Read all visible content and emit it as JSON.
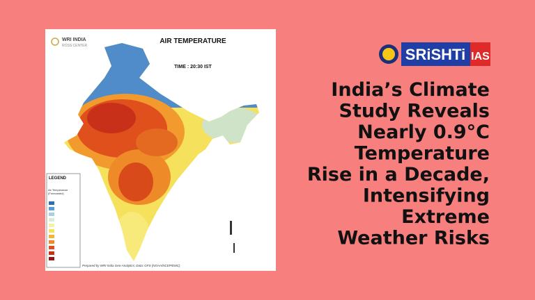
{
  "map": {
    "title": "AIR TEMPERATURE",
    "time": "TIME : 20:30 IST",
    "org": "WRI INDIA",
    "org_sub": "ROSS CENTER",
    "legend_title": "LEGEND",
    "legend_subtitle": "Air Temperature (Forecasted)",
    "footer": "Prepared by WRI India Geo-Analytics; Data: GFS (NOAA/NCEP/EMC)"
  },
  "brand": {
    "name": "SRiSHTi",
    "suffix": "IAS"
  },
  "headline": [
    "India’s Climate",
    "Study Reveals",
    "Nearly 0.9°C",
    "Temperature",
    "Rise in a Decade,",
    "Intensifying",
    "Extreme",
    "Weather Risks"
  ]
}
